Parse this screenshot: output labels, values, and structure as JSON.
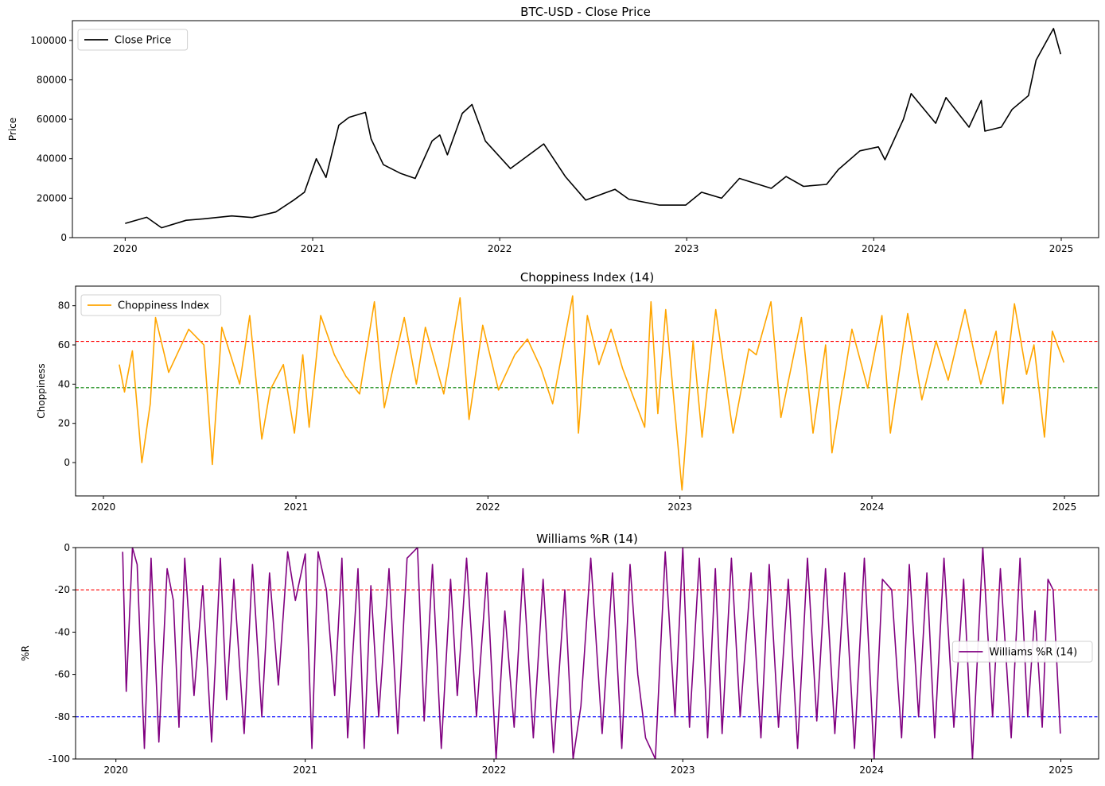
{
  "chart_data": [
    {
      "type": "line",
      "title": "BTC-USD - Close Price",
      "ylabel": "Price",
      "xlim": [
        "2019-09-20",
        "2025-03-15"
      ],
      "ylim": [
        0,
        110000
      ],
      "xticks": [
        "2020",
        "2021",
        "2022",
        "2023",
        "2024",
        "2025"
      ],
      "yticks": [
        0,
        20000,
        40000,
        60000,
        80000,
        100000
      ],
      "legend": {
        "position": "top-left",
        "entries": [
          "Close Price"
        ]
      },
      "grid": false,
      "series": [
        {
          "name": "Close Price",
          "color": "#000000",
          "x": [
            "2020-01-01",
            "2020-02-12",
            "2020-03-12",
            "2020-04-29",
            "2020-06-01",
            "2020-07-27",
            "2020-09-05",
            "2020-10-21",
            "2020-11-25",
            "2020-12-16",
            "2021-01-08",
            "2021-01-27",
            "2021-02-21",
            "2021-03-13",
            "2021-04-14",
            "2021-04-25",
            "2021-05-19",
            "2021-06-22",
            "2021-07-20",
            "2021-08-22",
            "2021-09-06",
            "2021-09-21",
            "2021-10-20",
            "2021-11-08",
            "2021-12-04",
            "2022-01-22",
            "2022-03-28",
            "2022-05-09",
            "2022-06-18",
            "2022-08-14",
            "2022-09-10",
            "2022-11-09",
            "2022-12-30",
            "2023-01-30",
            "2023-03-10",
            "2023-04-14",
            "2023-06-15",
            "2023-07-14",
            "2023-08-17",
            "2023-10-01",
            "2023-10-24",
            "2023-12-05",
            "2024-01-10",
            "2024-01-23",
            "2024-02-28",
            "2024-03-14",
            "2024-05-01",
            "2024-05-21",
            "2024-07-05",
            "2024-07-29",
            "2024-08-05",
            "2024-09-06",
            "2024-09-27",
            "2024-10-29",
            "2024-11-13",
            "2024-12-17",
            "2024-12-31"
          ],
          "y": [
            7200,
            10300,
            5000,
            8800,
            9500,
            11000,
            10200,
            13000,
            19000,
            23000,
            40000,
            30500,
            57000,
            61000,
            63500,
            50000,
            37000,
            32500,
            30000,
            49000,
            52000,
            42000,
            63000,
            67500,
            49000,
            35000,
            47500,
            31000,
            19000,
            24500,
            19500,
            16500,
            16500,
            23000,
            20000,
            30000,
            25000,
            31000,
            26000,
            27000,
            34500,
            44000,
            46000,
            39500,
            60000,
            73000,
            58000,
            71000,
            56000,
            69500,
            54000,
            56000,
            65000,
            72000,
            90000,
            106000,
            93000
          ]
        }
      ]
    },
    {
      "type": "line",
      "title": "Choppiness Index (14)",
      "ylabel": "Choppiness",
      "xlim": [
        "2019-11-09",
        "2025-03-07"
      ],
      "ylim": [
        -17,
        90
      ],
      "xticks": [
        "2020",
        "2021",
        "2022",
        "2023",
        "2024",
        "2025"
      ],
      "yticks": [
        0,
        20,
        40,
        60,
        80
      ],
      "legend": {
        "position": "top-left",
        "entries": [
          "Choppiness Index"
        ]
      },
      "grid": false,
      "reference_lines": [
        {
          "y": 61.8,
          "color": "#ff0000",
          "style": "dashed"
        },
        {
          "y": 38.2,
          "color": "#008000",
          "style": "dashed"
        }
      ],
      "series": [
        {
          "name": "Choppiness Index",
          "color": "#ffa500",
          "x": [
            "2020-01-31",
            "2020-02-10",
            "2020-02-25",
            "2020-03-14",
            "2020-03-30",
            "2020-04-09",
            "2020-05-04",
            "2020-06-11",
            "2020-07-10",
            "2020-07-26",
            "2020-08-13",
            "2020-09-16",
            "2020-10-05",
            "2020-10-28",
            "2020-11-13",
            "2020-12-08",
            "2020-12-29",
            "2021-01-14",
            "2021-01-26",
            "2021-02-17",
            "2021-03-15",
            "2021-04-06",
            "2021-05-02",
            "2021-05-30",
            "2021-06-18",
            "2021-07-26",
            "2021-08-18",
            "2021-09-04",
            "2021-10-09",
            "2021-11-09",
            "2021-11-26",
            "2021-12-22",
            "2022-01-21",
            "2022-02-21",
            "2022-03-17",
            "2022-04-12",
            "2022-05-04",
            "2022-06-11",
            "2022-06-22",
            "2022-07-09",
            "2022-07-31",
            "2022-08-23",
            "2022-09-14",
            "2022-10-26",
            "2022-11-07",
            "2022-11-20",
            "2022-12-05",
            "2023-01-05",
            "2023-01-26",
            "2023-02-12",
            "2023-03-10",
            "2023-04-12",
            "2023-05-12",
            "2023-05-26",
            "2023-06-23",
            "2023-07-12",
            "2023-08-20",
            "2023-09-11",
            "2023-10-05",
            "2023-10-17",
            "2023-11-24",
            "2023-12-24",
            "2024-01-20",
            "2024-02-05",
            "2024-03-09",
            "2024-04-05",
            "2024-05-02",
            "2024-05-25",
            "2024-06-26",
            "2024-07-26",
            "2024-08-24",
            "2024-09-06",
            "2024-09-28",
            "2024-10-21",
            "2024-11-04",
            "2024-11-24",
            "2024-12-09",
            "2024-12-31"
          ],
          "y": [
            50,
            36,
            57,
            0,
            30,
            74,
            46,
            68,
            60,
            -1,
            69,
            40,
            75,
            12,
            37,
            50,
            15,
            55,
            18,
            75,
            55,
            44,
            35,
            82,
            28,
            74,
            40,
            69,
            35,
            84,
            22,
            70,
            37,
            55,
            63,
            48,
            30,
            85,
            15,
            75,
            50,
            68,
            48,
            18,
            82,
            25,
            78,
            -14,
            62,
            13,
            78,
            15,
            58,
            55,
            82,
            23,
            74,
            15,
            60,
            5,
            68,
            38,
            75,
            15,
            76,
            32,
            62,
            42,
            78,
            40,
            67,
            30,
            81,
            45,
            60,
            13,
            67,
            51
          ]
        }
      ]
    },
    {
      "type": "line",
      "title": "Williams %R (14)",
      "ylabel": "%R",
      "xlim": [
        "2019-10-15",
        "2025-03-15"
      ],
      "ylim": [
        -100,
        0
      ],
      "xticks": [
        "2020",
        "2021",
        "2022",
        "2023",
        "2024",
        "2025"
      ],
      "yticks": [
        -100,
        -80,
        -60,
        -40,
        -20,
        0
      ],
      "legend": {
        "position": "center-right",
        "entries": [
          "Williams %R (14)"
        ]
      },
      "grid": false,
      "reference_lines": [
        {
          "y": -20,
          "color": "#ff0000",
          "style": "dashed"
        },
        {
          "y": -80,
          "color": "#0000ff",
          "style": "dashed"
        }
      ],
      "series": [
        {
          "name": "Williams %R (14)",
          "color": "#800080",
          "x": [
            "2020-01-14",
            "2020-01-21",
            "2020-02-02",
            "2020-02-11",
            "2020-02-25",
            "2020-03-09",
            "2020-03-24",
            "2020-04-09",
            "2020-04-21",
            "2020-05-02",
            "2020-05-13",
            "2020-05-31",
            "2020-06-17",
            "2020-07-04",
            "2020-07-21",
            "2020-08-02",
            "2020-08-16",
            "2020-09-05",
            "2020-09-21",
            "2020-10-09",
            "2020-10-24",
            "2020-11-10",
            "2020-11-28",
            "2020-12-13",
            "2021-01-01",
            "2021-01-14",
            "2021-01-26",
            "2021-02-11",
            "2021-02-27",
            "2021-03-13",
            "2021-03-24",
            "2021-04-13",
            "2021-04-25",
            "2021-05-08",
            "2021-05-23",
            "2021-06-12",
            "2021-06-29",
            "2021-07-17",
            "2021-08-06",
            "2021-08-19",
            "2021-09-04",
            "2021-09-21",
            "2021-10-09",
            "2021-10-22",
            "2021-11-09",
            "2021-11-28",
            "2021-12-18",
            "2022-01-05",
            "2022-01-22",
            "2022-02-09",
            "2022-02-26",
            "2022-03-18",
            "2022-04-06",
            "2022-04-26",
            "2022-05-18",
            "2022-06-03",
            "2022-06-18",
            "2022-07-07",
            "2022-07-29",
            "2022-08-18",
            "2022-09-05",
            "2022-09-21",
            "2022-10-06",
            "2022-10-21",
            "2022-11-09",
            "2022-11-28",
            "2022-12-17",
            "2023-01-01",
            "2023-01-14",
            "2023-02-02",
            "2023-02-18",
            "2023-03-05",
            "2023-03-18",
            "2023-04-05",
            "2023-04-22",
            "2023-05-13",
            "2023-06-01",
            "2023-06-17",
            "2023-07-05",
            "2023-07-24",
            "2023-08-11",
            "2023-08-30",
            "2023-09-17",
            "2023-10-04",
            "2023-10-22",
            "2023-11-10",
            "2023-11-29",
            "2023-12-18",
            "2024-01-06",
            "2024-01-22",
            "2024-02-09",
            "2024-02-28",
            "2024-03-14",
            "2024-04-01",
            "2024-04-17",
            "2024-05-02",
            "2024-05-20",
            "2024-06-08",
            "2024-06-27",
            "2024-07-14",
            "2024-08-03",
            "2024-08-22",
            "2024-09-06",
            "2024-09-27",
            "2024-10-14",
            "2024-10-29",
            "2024-11-12",
            "2024-11-26",
            "2024-12-07",
            "2024-12-17",
            "2024-12-31"
          ],
          "y": [
            -2,
            -68,
            0,
            -8,
            -95,
            -5,
            -92,
            -10,
            -25,
            -85,
            -5,
            -70,
            -18,
            -92,
            -5,
            -72,
            -15,
            -88,
            -8,
            -80,
            -12,
            -65,
            -2,
            -25,
            -3,
            -95,
            -2,
            -20,
            -70,
            -5,
            -90,
            -10,
            -95,
            -18,
            -80,
            -10,
            -88,
            -5,
            0,
            -82,
            -8,
            -95,
            -15,
            -70,
            -5,
            -80,
            -12,
            -100,
            -30,
            -85,
            -10,
            -90,
            -15,
            -97,
            -20,
            -100,
            -75,
            -5,
            -88,
            -12,
            -95,
            -8,
            -60,
            -90,
            -100,
            -2,
            -80,
            0,
            -85,
            -5,
            -90,
            -10,
            -88,
            -5,
            -80,
            -12,
            -90,
            -8,
            -85,
            -15,
            -95,
            -5,
            -82,
            -10,
            -88,
            -12,
            -95,
            -5,
            -100,
            -15,
            -20,
            -90,
            -8,
            -80,
            -12,
            -90,
            -5,
            -85,
            -15,
            -100,
            0,
            -80,
            -10,
            -90,
            -5,
            -80,
            -30,
            -85,
            -15,
            -20,
            -88
          ]
        }
      ]
    }
  ]
}
